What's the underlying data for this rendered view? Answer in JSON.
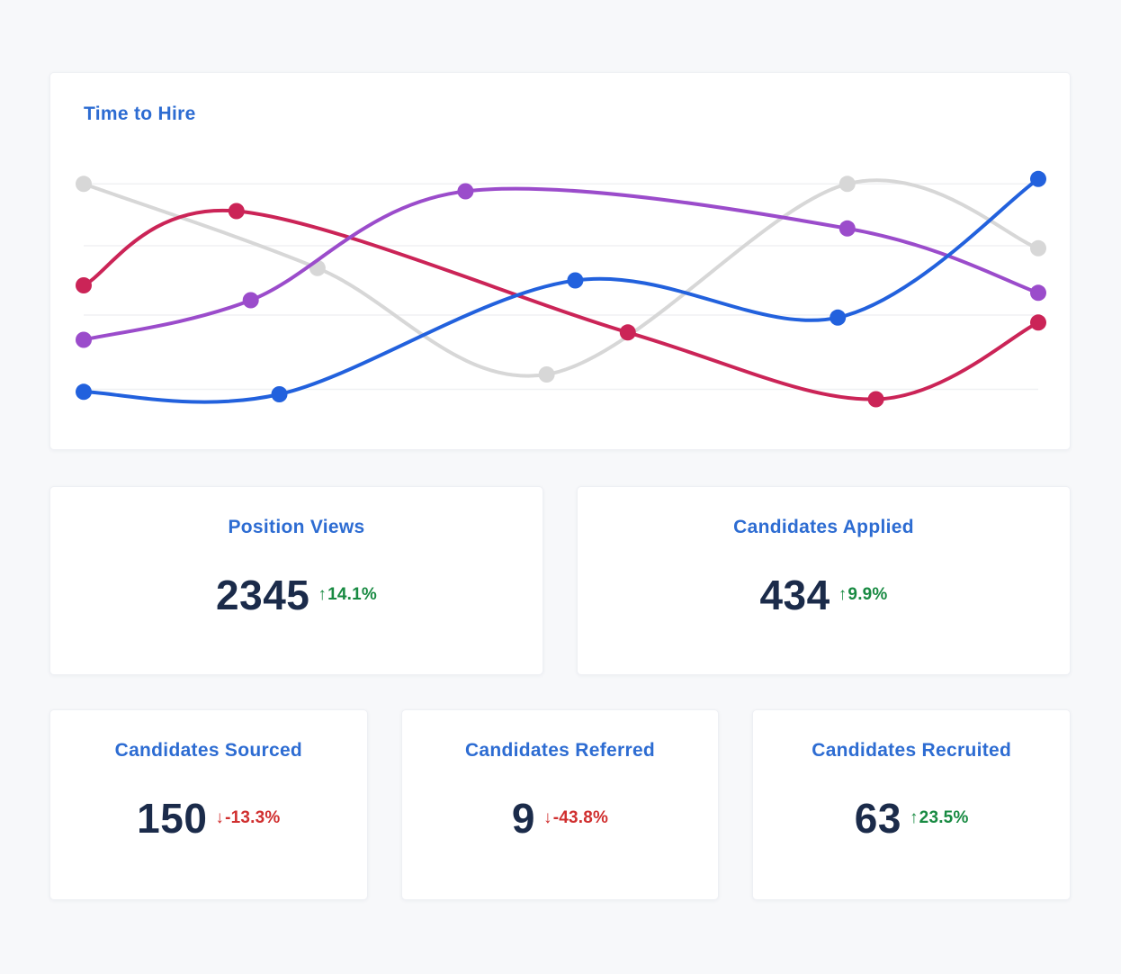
{
  "theme": {
    "page_bg": "#f7f8fa",
    "card_bg": "#ffffff",
    "title_blue": "#2d6cd2",
    "value_color": "#1b2b4a",
    "positive_color": "#188a42",
    "negative_color": "#d02f2f",
    "gridline_color": "#f0f1f3"
  },
  "chart_data": {
    "type": "line",
    "title": "Time to Hire",
    "xlabel": "",
    "ylabel": "",
    "x_range": [
      0,
      100
    ],
    "y_range": [
      0,
      100
    ],
    "legend": "none",
    "smooth": true,
    "line_width": 4,
    "point_radius": 9,
    "grid": {
      "horizontal": true,
      "y_values": [
        10,
        40,
        68,
        93
      ]
    },
    "series": [
      {
        "name": "series-gray",
        "color": "#d7d7d7",
        "points": [
          [
            0,
            93
          ],
          [
            24.5,
            59
          ],
          [
            48.5,
            16
          ],
          [
            80,
            93
          ],
          [
            100,
            67
          ]
        ]
      },
      {
        "name": "series-crimson",
        "color": "#cb2457",
        "points": [
          [
            0,
            52
          ],
          [
            16,
            82
          ],
          [
            57,
            33
          ],
          [
            83,
            6
          ],
          [
            100,
            37
          ]
        ]
      },
      {
        "name": "series-purple",
        "color": "#9b4ccb",
        "points": [
          [
            0,
            30
          ],
          [
            17.5,
            46
          ],
          [
            40,
            90
          ],
          [
            80,
            75
          ],
          [
            100,
            49
          ]
        ]
      },
      {
        "name": "series-blue",
        "color": "#2261dd",
        "points": [
          [
            0,
            9
          ],
          [
            20.5,
            8
          ],
          [
            51.5,
            54
          ],
          [
            79,
            39
          ],
          [
            100,
            95
          ]
        ]
      }
    ]
  },
  "metric_cards": [
    {
      "title": "Position Views",
      "value": "2345",
      "arrow": "↑",
      "delta": "14.1%",
      "direction": "up"
    },
    {
      "title": "Candidates Applied",
      "value": "434",
      "arrow": "↑",
      "delta": "9.9%",
      "direction": "up"
    },
    {
      "title": "Candidates Sourced",
      "value": "150",
      "arrow": "↓",
      "delta": "-13.3%",
      "direction": "down"
    },
    {
      "title": "Candidates Referred",
      "value": "9",
      "arrow": "↓",
      "delta": "-43.8%",
      "direction": "down"
    },
    {
      "title": "Candidates Recruited",
      "value": "63",
      "arrow": "↑",
      "delta": "23.5%",
      "direction": "up"
    }
  ]
}
